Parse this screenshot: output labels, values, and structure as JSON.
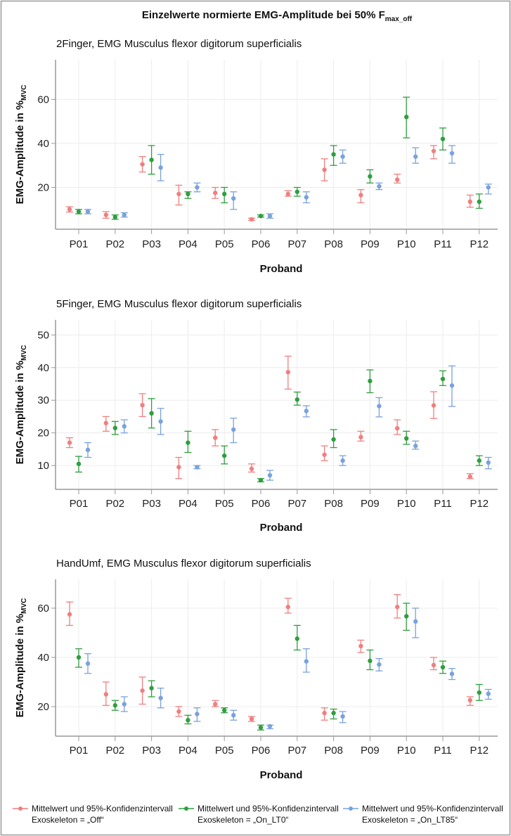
{
  "title": {
    "main": "Einzelwerte normierte EMG-Amplitude bei 50% F",
    "sub": "max_off"
  },
  "colors": {
    "Off": "#f07f7f",
    "On_LT0": "#2f9e3f",
    "On_LT85": "#7aa2dc",
    "grid": "#ececec",
    "axis": "#999999",
    "border": "#9a9a9a"
  },
  "legend": [
    {
      "line1": "Mittelwert und 95%-Konfidenzintervall",
      "line2": "Exoskeleton = „Off“",
      "color": "#f07f7f"
    },
    {
      "line1": "Mittelwert und 95%-Konfidenzintervall",
      "line2": "Exoskeleton = „On_LT0“",
      "color": "#2f9e3f"
    },
    {
      "line1": "Mittelwert und 95%-Konfidenzintervall",
      "line2": "Exoskeleton = „On_LT85“",
      "color": "#7aa2dc"
    }
  ],
  "chart_data": [
    {
      "type": "scatter",
      "title": "2Finger, EMG Musculus flexor digitorum superficialis",
      "xlabel": "Proband",
      "ylabel": {
        "main": "EMG-Amplitude in %",
        "sub": "MVC"
      },
      "categories": [
        "P01",
        "P02",
        "P03",
        "P04",
        "P05",
        "P06",
        "P07",
        "P08",
        "P09",
        "P10",
        "P11",
        "P12"
      ],
      "yticks": [
        20,
        40,
        60
      ],
      "ylim": [
        1,
        78
      ],
      "grid": true,
      "series": [
        {
          "name": "Exoskeleton = „Off“",
          "mean": [
            10,
            7.5,
            30.5,
            17,
            17.5,
            5.5,
            17,
            28,
            16.5,
            23.5,
            36.5,
            13.5
          ],
          "ci_low": [
            8.8,
            6,
            27,
            12,
            15,
            5,
            16,
            23,
            13,
            22,
            33,
            11
          ],
          "ci_high": [
            11.2,
            9,
            34,
            21,
            20,
            6,
            18.5,
            33,
            19,
            26,
            39,
            16.5
          ]
        },
        {
          "name": "Exoskeleton = „On_LT0“",
          "mean": [
            9,
            6.5,
            32.5,
            17,
            17,
            7,
            18,
            35,
            25,
            52,
            42,
            13.5
          ],
          "ci_low": [
            8,
            5.5,
            26,
            15,
            13,
            6.5,
            16,
            30,
            22,
            42.5,
            37,
            10.5
          ],
          "ci_high": [
            10,
            7.5,
            39,
            18,
            20,
            7.5,
            20,
            39,
            28,
            61,
            47,
            17
          ]
        },
        {
          "name": "Exoskeleton = „On_LT85“",
          "mean": [
            9,
            7.5,
            29,
            20,
            15,
            7,
            15.5,
            34,
            20.5,
            34,
            35.5,
            20
          ],
          "ci_low": [
            8,
            6.5,
            23,
            18,
            10,
            6,
            13,
            31,
            19,
            31,
            31,
            17
          ],
          "ci_high": [
            10,
            8.5,
            35,
            22,
            18,
            8,
            18,
            37,
            22,
            38,
            39,
            21.5
          ]
        }
      ]
    },
    {
      "type": "scatter",
      "title": "5Finger, EMG Musculus flexor digitorum superficialis",
      "xlabel": "Proband",
      "ylabel": {
        "main": "EMG-Amplitude in %",
        "sub": "MVC"
      },
      "categories": [
        "P01",
        "P02",
        "P03",
        "P04",
        "P05",
        "P06",
        "P07",
        "P08",
        "P09",
        "P10",
        "P11",
        "P12"
      ],
      "yticks": [
        10,
        20,
        30,
        40,
        50
      ],
      "ylim": [
        2.7,
        54.6
      ],
      "grid": true,
      "series": [
        {
          "name": "Exoskeleton = „Off“",
          "mean": [
            17,
            23,
            28.5,
            9.5,
            18.5,
            9,
            38.6,
            13.3,
            18.7,
            21.4,
            28.4,
            6.6
          ],
          "ci_low": [
            15.5,
            20.5,
            25,
            6,
            16,
            8,
            33.4,
            11.5,
            17.5,
            19.5,
            24.4,
            6
          ],
          "ci_high": [
            18.5,
            25,
            32,
            12.5,
            21,
            10.5,
            43.5,
            16,
            20.5,
            24,
            32.6,
            7.5
          ]
        },
        {
          "name": "Exoskeleton = „On_LT0“",
          "mean": [
            10.5,
            21.5,
            26,
            17,
            13,
            5.5,
            30.2,
            18,
            35.9,
            18.3,
            36.5,
            11.5
          ],
          "ci_low": [
            8,
            19.5,
            21.5,
            14,
            10.5,
            5,
            28.5,
            15.5,
            32.3,
            16.5,
            34.5,
            10
          ],
          "ci_high": [
            12.8,
            23.5,
            30.5,
            20.5,
            16,
            6,
            32.5,
            21,
            39.3,
            20.5,
            39,
            13
          ]
        },
        {
          "name": "Exoskeleton = „On_LT85“",
          "mean": [
            14.8,
            22,
            23.5,
            9.5,
            21,
            7,
            26.7,
            11.5,
            28.2,
            16,
            34.5,
            10.9
          ],
          "ci_low": [
            12.5,
            20,
            19.5,
            9,
            17,
            5.5,
            24.9,
            10,
            24.9,
            15,
            28.1,
            9
          ],
          "ci_high": [
            17,
            24,
            27.5,
            10,
            24.5,
            8.5,
            28.3,
            13,
            30.8,
            17.5,
            40.5,
            12.5
          ]
        }
      ]
    },
    {
      "type": "scatter",
      "title": "HandUmf, EMG Musculus flexor digitorum superficialis",
      "xlabel": "Proband",
      "ylabel": {
        "main": "EMG-Amplitude in %",
        "sub": "MVC"
      },
      "categories": [
        "P01",
        "P02",
        "P03",
        "P04",
        "P05",
        "P06",
        "P07",
        "P08",
        "P09",
        "P10",
        "P11",
        "P12"
      ],
      "yticks": [
        20,
        40,
        60
      ],
      "ylim": [
        8,
        71.7
      ],
      "grid": true,
      "series": [
        {
          "name": "Exoskeleton = „Off“",
          "mean": [
            57.5,
            25,
            26.5,
            18,
            21,
            15,
            60.5,
            17.4,
            44.6,
            60.5,
            36.9,
            22.6
          ],
          "ci_low": [
            53,
            20.5,
            21,
            16,
            20,
            14,
            58,
            14.5,
            42,
            56,
            35,
            20.5
          ],
          "ci_high": [
            62.5,
            30,
            32,
            20,
            22.5,
            16,
            64,
            19.5,
            47,
            65.5,
            40,
            24
          ]
        },
        {
          "name": "Exoskeleton = „On_LT0“",
          "mean": [
            40,
            20.5,
            27.5,
            14.5,
            18.5,
            11.5,
            47.6,
            17.4,
            38.6,
            56.7,
            36,
            25.7
          ],
          "ci_low": [
            36,
            18.5,
            24,
            13,
            17.5,
            10.5,
            43,
            15,
            35,
            51,
            33.5,
            22.5
          ],
          "ci_high": [
            43.5,
            22.5,
            30.5,
            16.5,
            19.5,
            12.5,
            53,
            19,
            43,
            62,
            38.5,
            29
          ]
        },
        {
          "name": "Exoskeleton = „On_LT85“",
          "mean": [
            37.5,
            21,
            23.5,
            17,
            16.5,
            12,
            38.4,
            16,
            37.1,
            54.6,
            33.3,
            25.2
          ],
          "ci_low": [
            33.5,
            18,
            19.5,
            14,
            14.5,
            11,
            34,
            13.5,
            34.5,
            48,
            31,
            23
          ],
          "ci_high": [
            41.5,
            24,
            27.5,
            19.5,
            18.5,
            12.5,
            43.5,
            18,
            39.5,
            60,
            35.5,
            27
          ]
        }
      ]
    }
  ]
}
